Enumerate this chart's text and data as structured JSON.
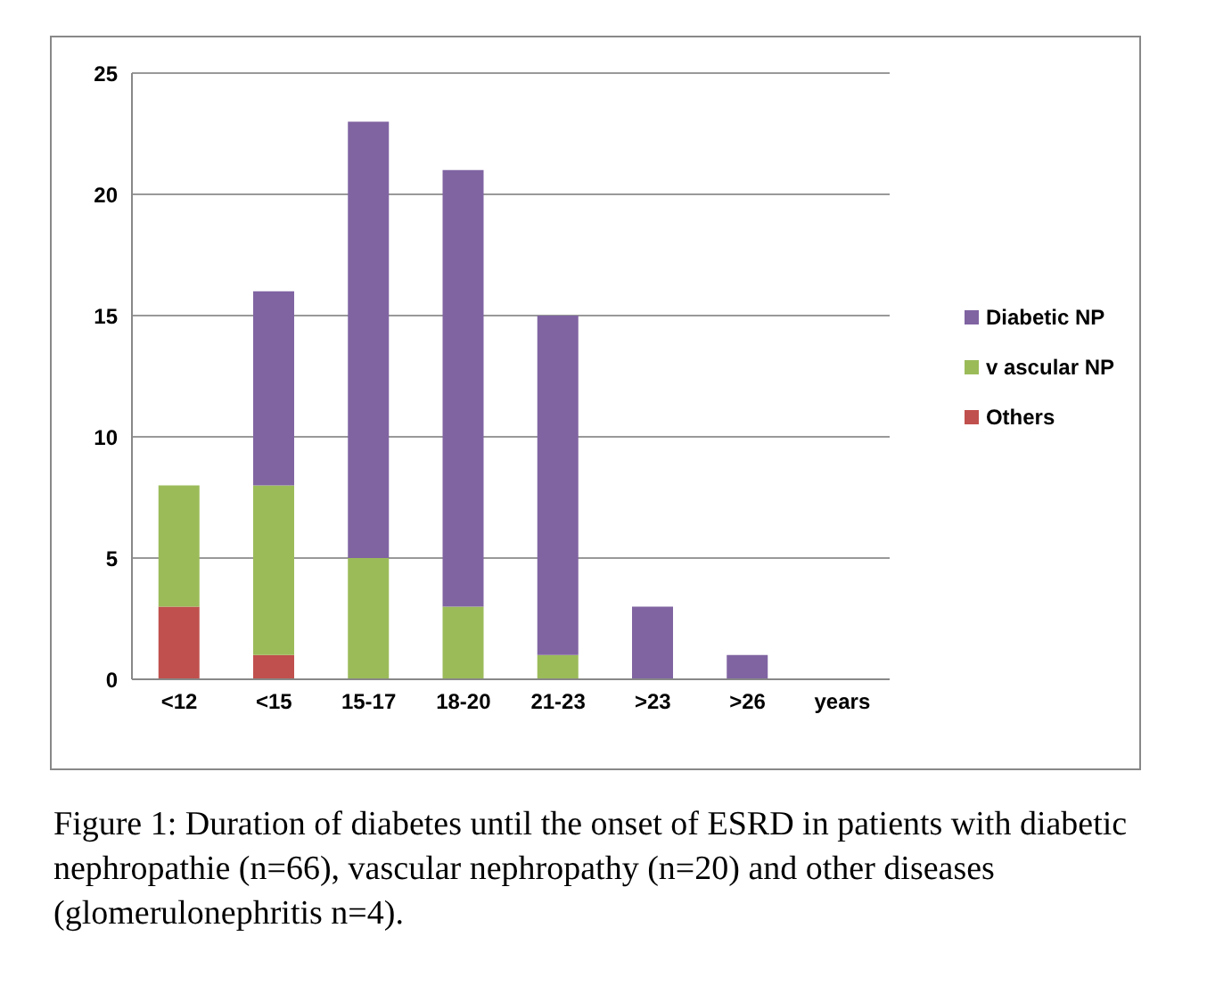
{
  "chart_data": {
    "type": "bar",
    "stacked": true,
    "categories": [
      "<12",
      "<15",
      "15-17",
      "18-20",
      "21-23",
      ">23",
      ">26",
      "years"
    ],
    "series": [
      {
        "name": "Others",
        "color": "#c0504d",
        "values": [
          3,
          1,
          0,
          0,
          0,
          0,
          0,
          0
        ]
      },
      {
        "name": "v ascular NP",
        "color": "#9bbb59",
        "values": [
          5,
          7,
          5,
          3,
          1,
          0,
          0,
          0
        ]
      },
      {
        "name": "Diabetic NP",
        "color": "#8064a2",
        "values": [
          0,
          8,
          18,
          18,
          14,
          3,
          1,
          0
        ]
      }
    ],
    "ylim": [
      0,
      25
    ],
    "yticks": [
      0,
      5,
      10,
      15,
      20,
      25
    ],
    "grid": "y",
    "legend": "right",
    "annotations": [
      "Figure 1: Duration of diabetes until the onset of ESRD in patients with diabetic nephropathie (n=66), vascular nephropathy (n=20) and other diseases (glomerulonephritis n=4)."
    ]
  }
}
